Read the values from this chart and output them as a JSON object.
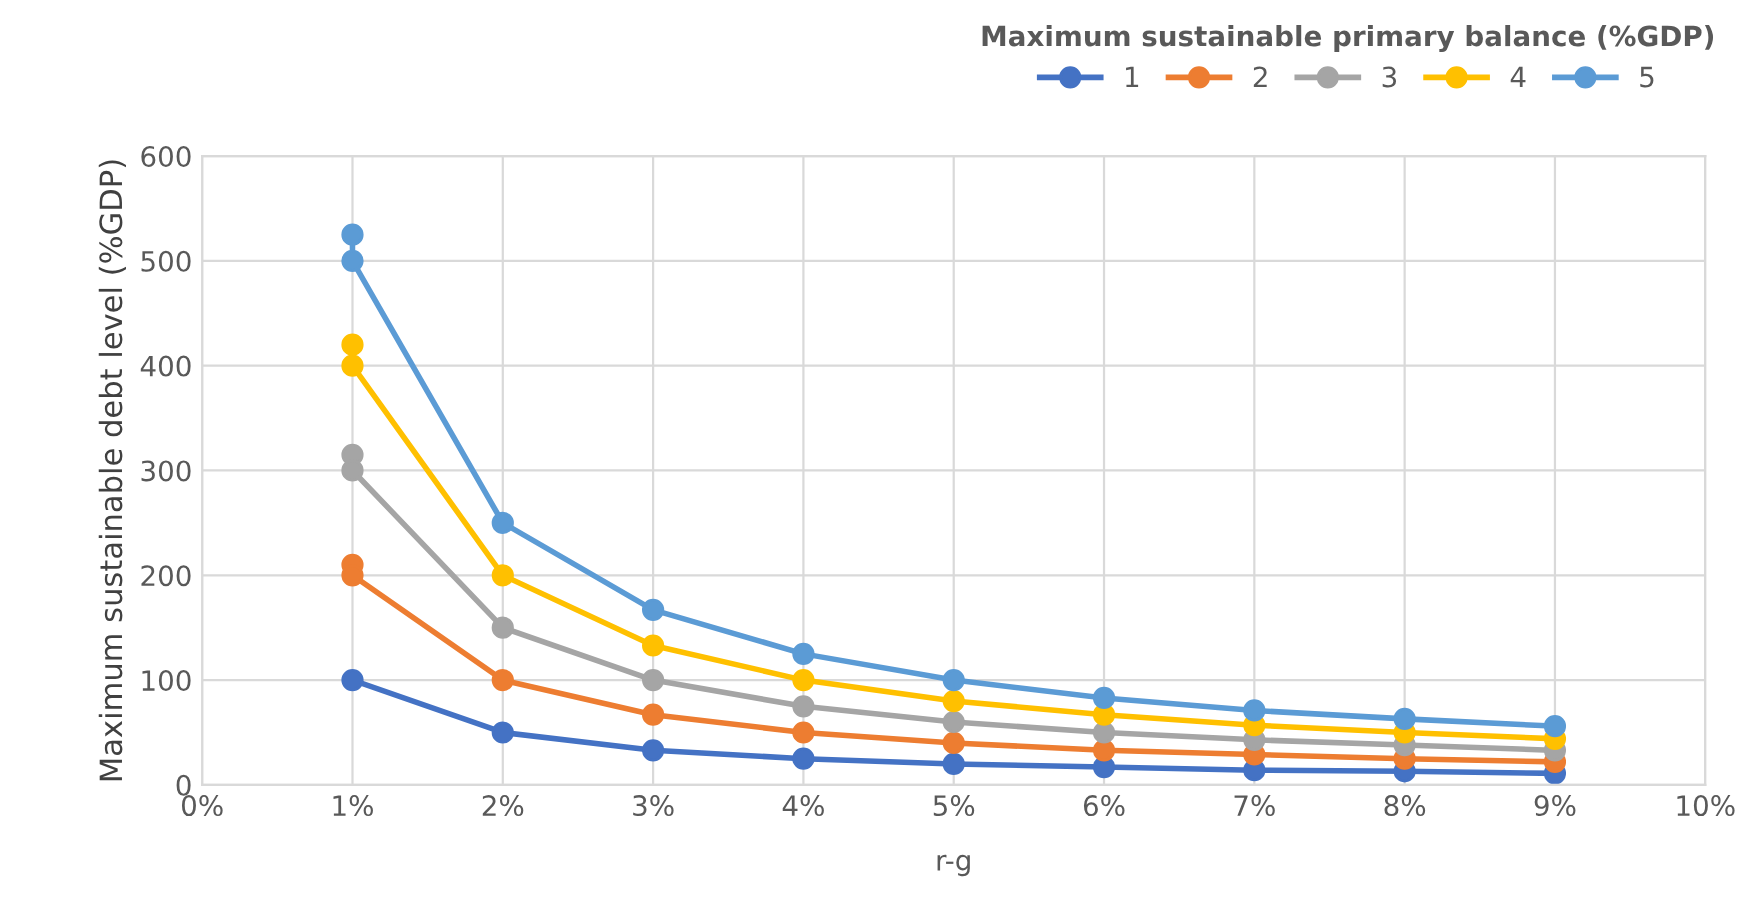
{
  "chart_data": {
    "type": "line",
    "xlabel": "r-g",
    "ylabel": "Maximum sustainable debt level (%GDP)",
    "legend_title": "Maximum sustainable primary balance (%GDP)",
    "x": [
      1,
      1,
      2,
      3,
      4,
      5,
      6,
      7,
      8,
      9
    ],
    "series": [
      {
        "name": "1",
        "color": "#4472c4",
        "values": [
          null,
          100,
          50,
          33,
          25,
          20,
          17,
          14,
          13,
          11
        ]
      },
      {
        "name": "2",
        "color": "#ed7d31",
        "values": [
          210,
          200,
          100,
          67,
          50,
          40,
          33,
          29,
          25,
          22
        ]
      },
      {
        "name": "3",
        "color": "#a5a5a5",
        "values": [
          315,
          300,
          150,
          100,
          75,
          60,
          50,
          43,
          38,
          33
        ]
      },
      {
        "name": "4",
        "color": "#ffc000",
        "values": [
          420,
          400,
          200,
          133,
          100,
          80,
          67,
          57,
          50,
          44
        ]
      },
      {
        "name": "5",
        "color": "#5b9bd5",
        "values": [
          525,
          500,
          250,
          167,
          125,
          100,
          83,
          71,
          63,
          56
        ]
      }
    ],
    "xlim": [
      0,
      10
    ],
    "xticks": [
      {
        "value": 0,
        "label": "0%"
      },
      {
        "value": 1,
        "label": "1%"
      },
      {
        "value": 2,
        "label": "2%"
      },
      {
        "value": 3,
        "label": "3%"
      },
      {
        "value": 4,
        "label": "4%"
      },
      {
        "value": 5,
        "label": "5%"
      },
      {
        "value": 6,
        "label": "6%"
      },
      {
        "value": 7,
        "label": "7%"
      },
      {
        "value": 8,
        "label": "8%"
      },
      {
        "value": 9,
        "label": "9%"
      },
      {
        "value": 10,
        "label": "10%"
      }
    ],
    "ylim": [
      0,
      600
    ],
    "yticks": [
      0,
      100,
      200,
      300,
      400,
      500,
      600
    ],
    "grid": true,
    "legend": "top right",
    "marker": "circle",
    "line_style": "solid"
  }
}
